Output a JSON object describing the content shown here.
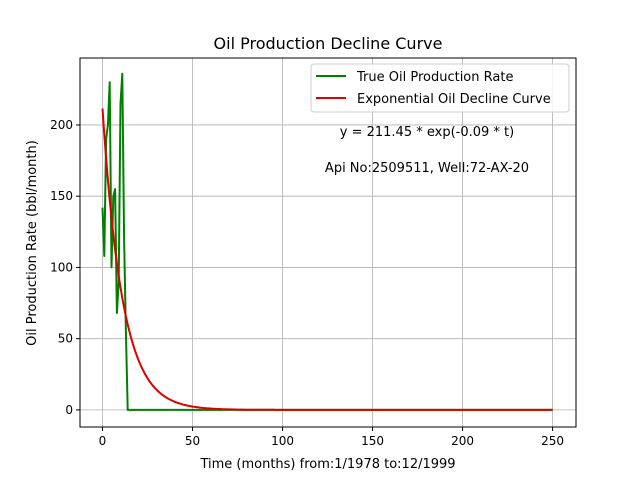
{
  "chart_data": {
    "type": "line",
    "title": "Oil Production Decline Curve",
    "xlabel": "Time (months) from:1/1978 to:12/1999",
    "ylabel": "Oil Production Rate (bbl/month)",
    "xlim": [
      -12.5,
      263
    ],
    "ylim": [
      -12,
      247
    ],
    "x_ticks": [
      0,
      50,
      100,
      150,
      200,
      250
    ],
    "y_ticks": [
      0,
      50,
      100,
      150,
      200
    ],
    "grid": true,
    "legend_position": "top-right",
    "annotations": [
      "y = 211.45 * exp(-0.09 * t)",
      "Api No:2509511, Well:72-AX-20"
    ],
    "series": [
      {
        "name": "True Oil Production Rate",
        "color": "#008000",
        "x": [
          0,
          1,
          2,
          3,
          4,
          5,
          6,
          7,
          8,
          9,
          10,
          11,
          12,
          13,
          14,
          15,
          20,
          30,
          50,
          100,
          150,
          200,
          250
        ],
        "y": [
          142,
          108,
          190,
          200,
          230,
          100,
          150,
          155,
          68,
          90,
          215,
          236,
          120,
          55,
          0,
          0,
          0,
          0,
          0,
          0,
          0,
          0,
          0
        ]
      },
      {
        "name": "Exponential Oil Decline Curve",
        "color": "#dd0000",
        "equation": {
          "a": 211.45,
          "b": 0.09
        },
        "x_range": [
          0,
          250
        ]
      }
    ]
  }
}
